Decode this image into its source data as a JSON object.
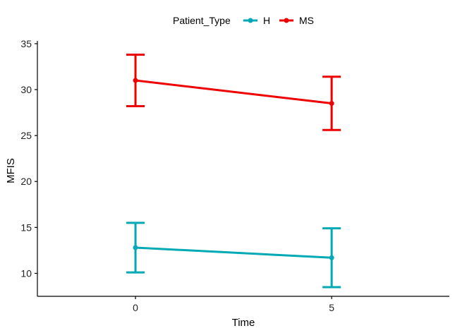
{
  "chart_data": {
    "type": "line",
    "xlabel": "Time",
    "ylabel": "MFIS",
    "x": [
      0,
      5
    ],
    "xlim": [
      -2.5,
      8.0
    ],
    "ylim": [
      7.5,
      35.3
    ],
    "x_ticks": [
      "0",
      "5"
    ],
    "y_ticks": [
      "10",
      "15",
      "20",
      "25",
      "30",
      "35"
    ],
    "grid": false,
    "legend": {
      "title": "Patient_Type",
      "position": "top"
    },
    "series": [
      {
        "name": "H",
        "color": "#00a9b5",
        "values": [
          12.8,
          11.7
        ],
        "ci_lower": [
          10.1,
          8.5
        ],
        "ci_upper": [
          15.5,
          14.9
        ]
      },
      {
        "name": "MS",
        "color": "#ee0000",
        "values": [
          31.0,
          28.5
        ],
        "ci_lower": [
          28.2,
          25.6
        ],
        "ci_upper": [
          33.8,
          31.4
        ]
      }
    ]
  }
}
